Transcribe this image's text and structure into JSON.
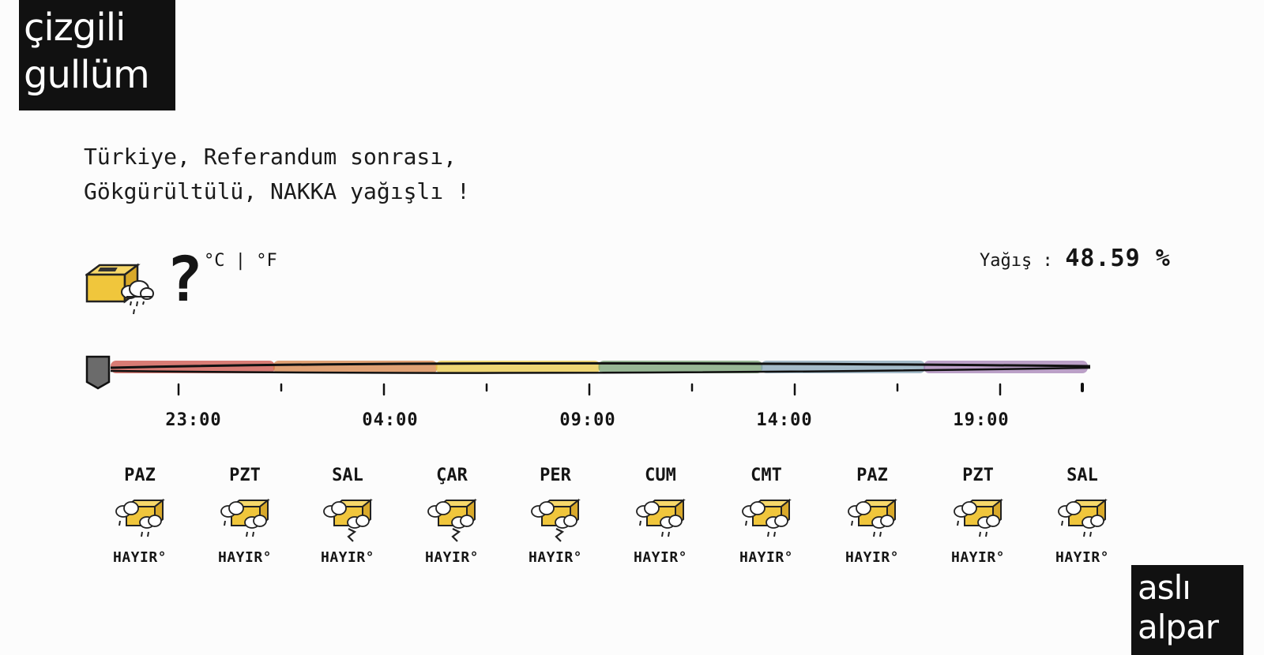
{
  "logos": {
    "top": [
      "çizgili",
      "gullüm"
    ],
    "bottom": [
      "aslı",
      "alpar"
    ]
  },
  "headline": {
    "line1": "Türkiye, Referandum sonrası,",
    "line2": "Gökgürültülü, NAKKA yağışlı !"
  },
  "current": {
    "icon": "ballot-box-rain-cloud-icon",
    "temperature": "?",
    "units": "°C | °F"
  },
  "precipitation": {
    "label": "Yağış :",
    "value": "48.59 %"
  },
  "timeline": {
    "tick_labels": [
      "23:00",
      "04:00",
      "09:00",
      "14:00",
      "19:00"
    ],
    "progress": 0,
    "handle_icon": "timeline-handle-icon",
    "segment_colors": [
      "#c9453a",
      "#d47a3a",
      "#e8c53a",
      "#6e9a6a",
      "#7fa0b4",
      "#a079b0"
    ]
  },
  "forecast": [
    {
      "day": "PAZ",
      "text": "HAYIR°",
      "icon": "ballot-box-rain-cloud-icon"
    },
    {
      "day": "PZT",
      "text": "HAYIR°",
      "icon": "ballot-box-rain-cloud-icon"
    },
    {
      "day": "SAL",
      "text": "HAYIR°",
      "icon": "ballot-box-thunder-cloud-icon"
    },
    {
      "day": "ÇAR",
      "text": "HAYIR°",
      "icon": "ballot-box-thunder-cloud-icon"
    },
    {
      "day": "PER",
      "text": "HAYIR°",
      "icon": "ballot-box-thunder-cloud-icon"
    },
    {
      "day": "CUM",
      "text": "HAYIR°",
      "icon": "ballot-box-rain-cloud-icon"
    },
    {
      "day": "CMT",
      "text": "HAYIR°",
      "icon": "ballot-box-rain-cloud-icon"
    },
    {
      "day": "PAZ",
      "text": "HAYIR°",
      "icon": "ballot-box-rain-cloud-icon"
    },
    {
      "day": "PZT",
      "text": "HAYIR°",
      "icon": "ballot-box-rain-cloud-icon"
    },
    {
      "day": "SAL",
      "text": "HAYIR°",
      "icon": "ballot-box-rain-cloud-icon"
    }
  ],
  "colors": {
    "ballot_box": "#f0c63c",
    "logo_bg": "#111111",
    "handle": "#6b6b6b"
  }
}
